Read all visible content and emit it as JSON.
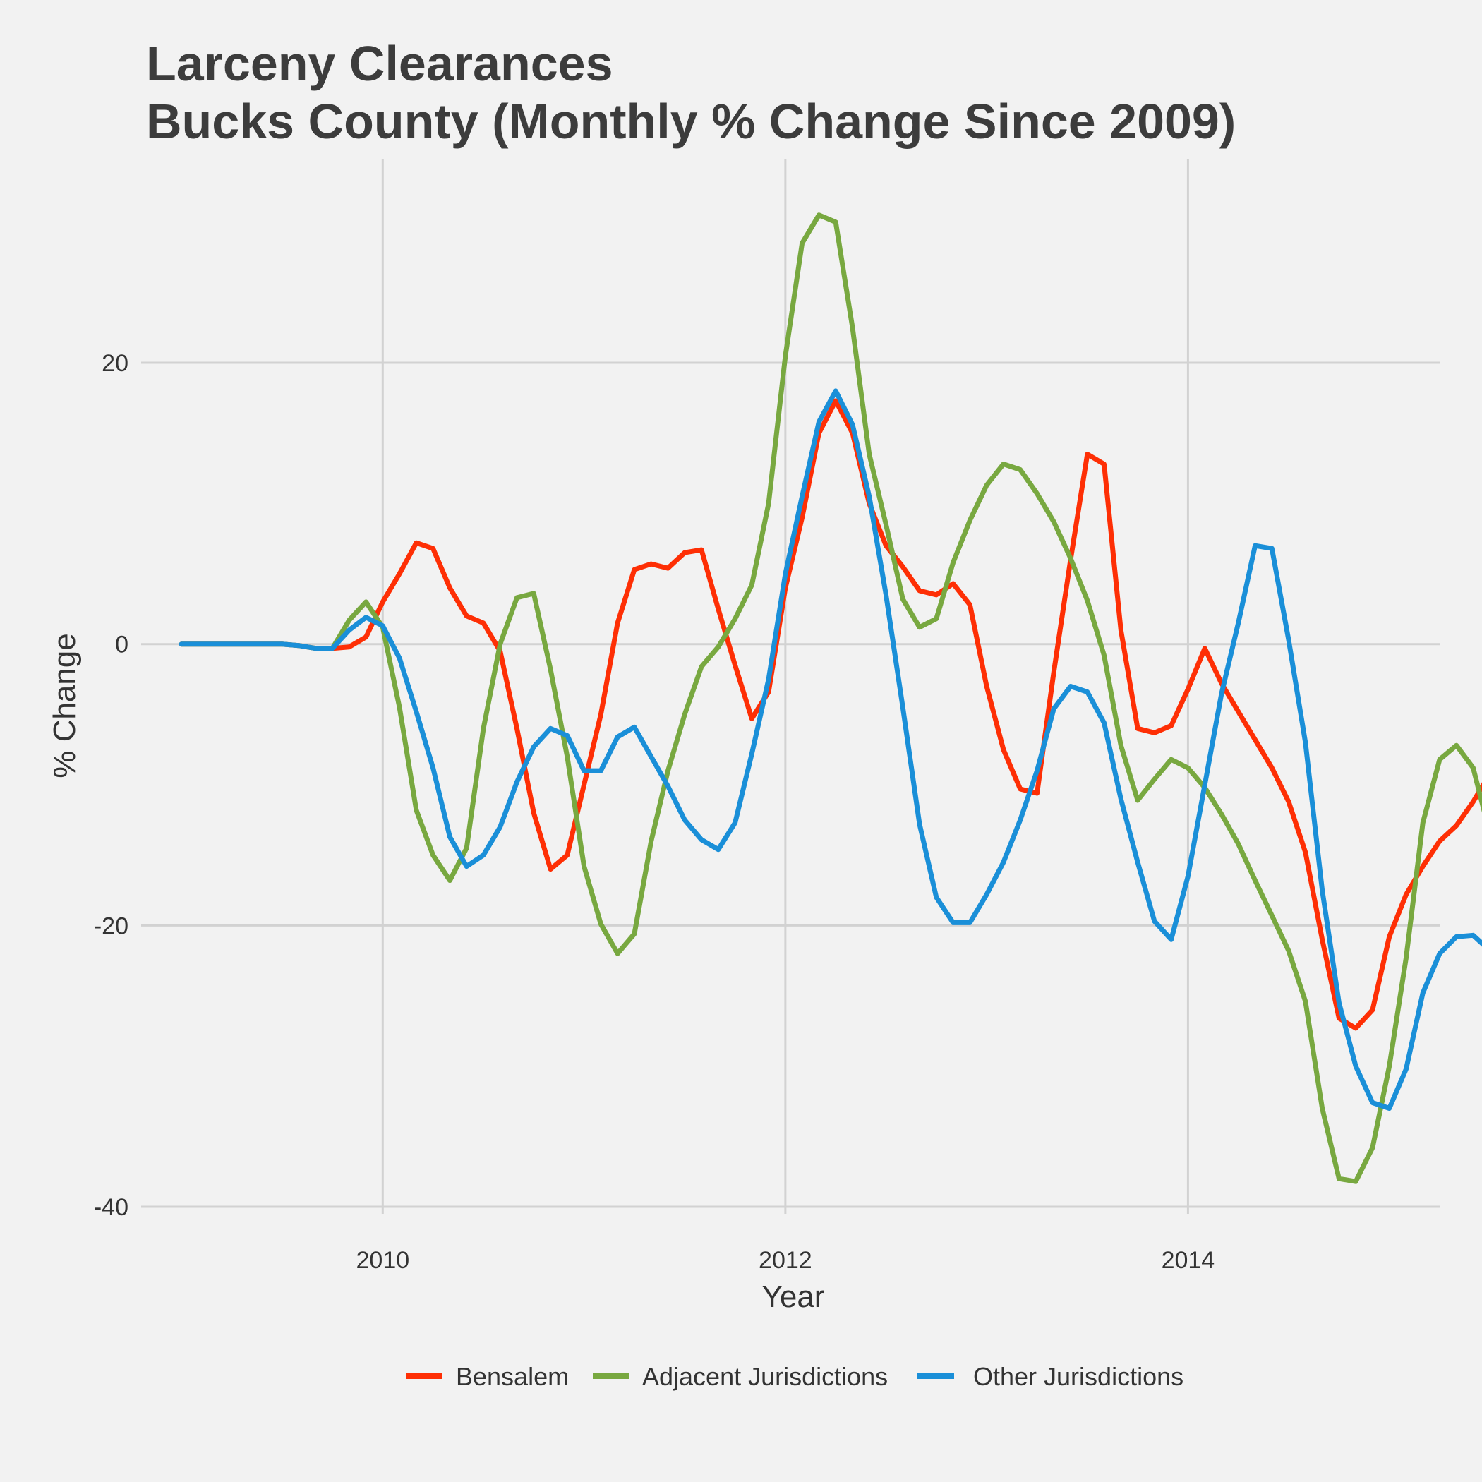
{
  "chart_data": {
    "type": "line",
    "title": "Larceny Clearances",
    "subtitle": "Bucks County (Monthly % Change Since 2009)",
    "xlabel": "Year",
    "ylabel": "% Change",
    "xlim": [
      2008.8,
      2015.25
    ],
    "ylim": [
      -40.5,
      34.5
    ],
    "x_ticks": [
      2010,
      2012,
      2014
    ],
    "x_tick_labels": [
      "2010",
      "2012",
      "2014"
    ],
    "y_ticks": [
      -40,
      -20,
      0,
      20
    ],
    "y_tick_labels": [
      "-40",
      "-20",
      "0",
      "20"
    ],
    "grid": true,
    "legend_position": "bottom",
    "x_start": 2009.0,
    "x_step": 0.0833333,
    "series": [
      {
        "name": "Bensalem",
        "color": "#fe2f05",
        "values": [
          0,
          0,
          0,
          0,
          0,
          0,
          0,
          -0.1,
          -0.3,
          -0.3,
          -0.2,
          0.5,
          3,
          5,
          7.2,
          6.8,
          4,
          2,
          1.5,
          -0.5,
          -6,
          -12,
          -16,
          -15,
          -10,
          -5,
          1.5,
          5.3,
          5.7,
          5.4,
          6.5,
          6.7,
          2.5,
          -1.5,
          -5.3,
          -3.4,
          4,
          9,
          15,
          17.3,
          15,
          10,
          7,
          5.5,
          3.8,
          3.5,
          4.3,
          2.8,
          -3,
          -7.5,
          -10.3,
          -10.6,
          -2,
          6,
          13.5,
          12.8,
          1,
          -6,
          -6.3,
          -5.8,
          -3.2,
          -0.3,
          -2.8,
          -4.8,
          -6.8,
          -8.8,
          -11.2,
          -14.8,
          -21,
          -26.6,
          -27.3,
          -26,
          -20.8,
          -17.8,
          -15.8,
          -14,
          -12.9,
          -11.2,
          -9.2,
          -6.2
        ]
      },
      {
        "name": "Adjacent Jurisdictions",
        "color": "#78a840",
        "values": [
          0,
          0,
          0,
          0,
          0,
          0,
          0,
          -0.1,
          -0.3,
          -0.3,
          1.7,
          3,
          1.2,
          -4.5,
          -11.8,
          -15,
          -16.8,
          -14.5,
          -6,
          0,
          3.3,
          3.6,
          -1.8,
          -8,
          -15.8,
          -19.9,
          -22,
          -20.6,
          -14,
          -9,
          -5,
          -1.6,
          -0.2,
          1.8,
          4.2,
          10,
          20.5,
          28.5,
          30.5,
          30,
          22.5,
          13.5,
          8.5,
          3.2,
          1.2,
          1.8,
          5.8,
          8.8,
          11.3,
          12.8,
          12.4,
          10.7,
          8.7,
          6.1,
          3.1,
          -0.8,
          -7.2,
          -11.1,
          -9.6,
          -8.2,
          -8.8,
          -10.2,
          -12.1,
          -14.2,
          -16.8,
          -19.3,
          -21.8,
          -25.4,
          -33,
          -38,
          -38.2,
          -35.8,
          -30,
          -22.3,
          -12.7,
          -8.2,
          -7.2,
          -8.8,
          -13.5,
          -20.8
        ]
      },
      {
        "name": "Other Jurisdictions",
        "color": "#1a8fd8",
        "values": [
          0,
          0,
          0,
          0,
          0,
          0,
          0,
          -0.1,
          -0.3,
          -0.3,
          1,
          1.9,
          1.3,
          -1,
          -4.8,
          -8.8,
          -13.7,
          -15.8,
          -15,
          -13,
          -9.8,
          -7.3,
          -6,
          -6.5,
          -9,
          -9,
          -6.6,
          -5.9,
          -8,
          -10.1,
          -12.5,
          -13.9,
          -14.6,
          -12.7,
          -7.8,
          -2.5,
          5,
          10.5,
          15.8,
          18,
          15.6,
          10.5,
          3.5,
          -4.5,
          -12.8,
          -18,
          -19.8,
          -19.8,
          -17.8,
          -15.5,
          -12.5,
          -9,
          -4.6,
          -3,
          -3.4,
          -5.6,
          -11,
          -15.5,
          -19.7,
          -21,
          -16.5,
          -10,
          -3.5,
          1.5,
          7,
          6.8,
          0.3,
          -7,
          -17.5,
          -25.5,
          -30,
          -32.6,
          -33,
          -30.2,
          -24.8,
          -22,
          -20.8,
          -20.7,
          -21.8,
          -24.2
        ]
      }
    ]
  }
}
